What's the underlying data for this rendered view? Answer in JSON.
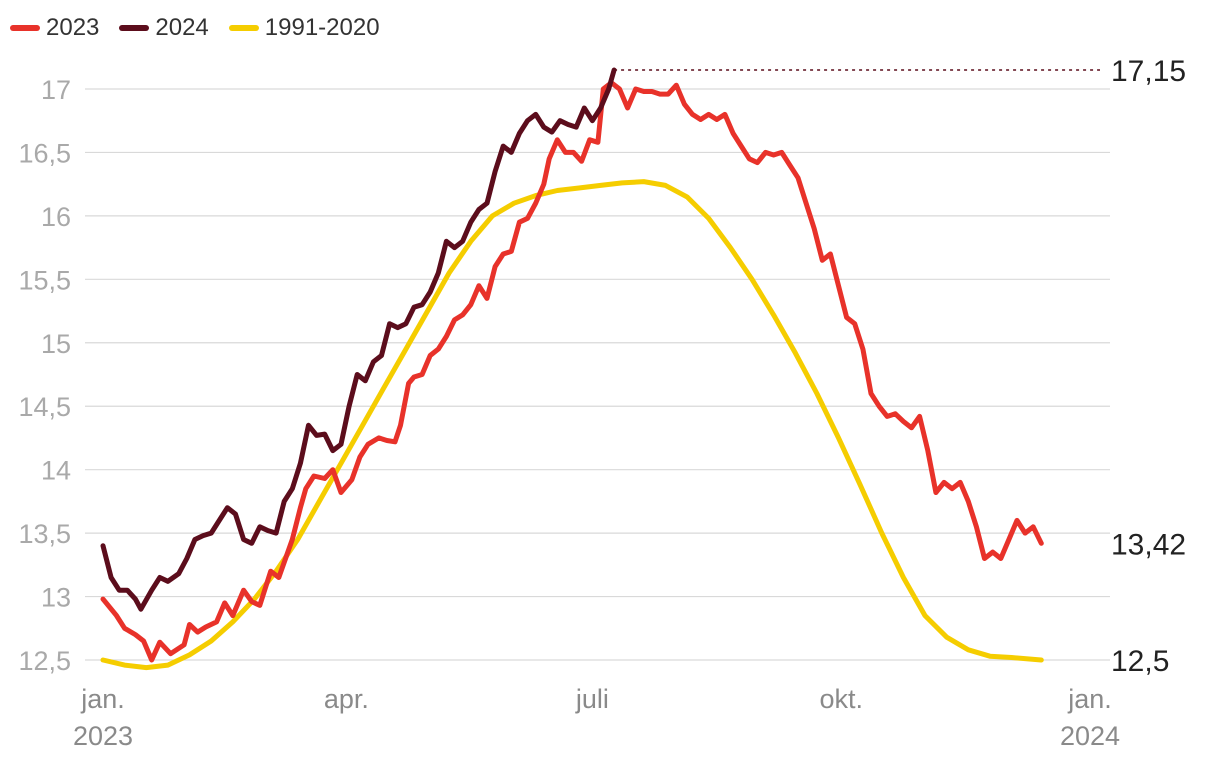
{
  "chart_data": {
    "type": "line",
    "title": "",
    "xlabel": "",
    "ylabel": "",
    "ylim": [
      12.5,
      17.15
    ],
    "yticks": [
      "12,5",
      "13",
      "13,5",
      "14",
      "14,5",
      "15",
      "15,5",
      "16",
      "16,5",
      "17"
    ],
    "ytick_values": [
      12.5,
      13,
      13.5,
      14,
      14.5,
      15,
      15.5,
      16,
      16.5,
      17
    ],
    "xticks": [
      {
        "day": 0,
        "label": "jan.",
        "sublabel": "2023"
      },
      {
        "day": 90,
        "label": "apr.",
        "sublabel": ""
      },
      {
        "day": 181,
        "label": "juli",
        "sublabel": ""
      },
      {
        "day": 273,
        "label": "okt.",
        "sublabel": ""
      },
      {
        "day": 365,
        "label": "jan.",
        "sublabel": "2024"
      }
    ],
    "x_unit": "day of year",
    "series": [
      {
        "name": "2023",
        "color": "#e8322a",
        "points": [
          [
            0,
            12.98
          ],
          [
            5,
            12.85
          ],
          [
            8,
            12.75
          ],
          [
            12,
            12.7
          ],
          [
            15,
            12.65
          ],
          [
            18,
            12.5
          ],
          [
            21,
            12.64
          ],
          [
            25,
            12.55
          ],
          [
            30,
            12.62
          ],
          [
            32,
            12.78
          ],
          [
            35,
            12.72
          ],
          [
            38,
            12.76
          ],
          [
            42,
            12.8
          ],
          [
            45,
            12.95
          ],
          [
            48,
            12.85
          ],
          [
            52,
            13.05
          ],
          [
            55,
            12.96
          ],
          [
            58,
            12.93
          ],
          [
            62,
            13.2
          ],
          [
            65,
            13.15
          ],
          [
            70,
            13.45
          ],
          [
            73,
            13.7
          ],
          [
            75,
            13.85
          ],
          [
            78,
            13.95
          ],
          [
            82,
            13.93
          ],
          [
            85,
            14.0
          ],
          [
            88,
            13.82
          ],
          [
            92,
            13.92
          ],
          [
            95,
            14.1
          ],
          [
            98,
            14.2
          ],
          [
            102,
            14.25
          ],
          [
            105,
            14.23
          ],
          [
            108,
            14.22
          ],
          [
            110,
            14.35
          ],
          [
            113,
            14.68
          ],
          [
            115,
            14.73
          ],
          [
            118,
            14.75
          ],
          [
            121,
            14.9
          ],
          [
            124,
            14.95
          ],
          [
            127,
            15.05
          ],
          [
            130,
            15.18
          ],
          [
            133,
            15.22
          ],
          [
            136,
            15.3
          ],
          [
            139,
            15.45
          ],
          [
            142,
            15.35
          ],
          [
            145,
            15.6
          ],
          [
            148,
            15.7
          ],
          [
            151,
            15.72
          ],
          [
            154,
            15.95
          ],
          [
            157,
            15.98
          ],
          [
            160,
            16.1
          ],
          [
            163,
            16.25
          ],
          [
            165,
            16.45
          ],
          [
            168,
            16.6
          ],
          [
            171,
            16.5
          ],
          [
            174,
            16.5
          ],
          [
            177,
            16.43
          ],
          [
            180,
            16.6
          ],
          [
            183,
            16.58
          ],
          [
            185,
            17.0
          ],
          [
            188,
            17.05
          ],
          [
            191,
            17.0
          ],
          [
            194,
            16.85
          ],
          [
            197,
            17.0
          ],
          [
            200,
            16.98
          ],
          [
            203,
            16.98
          ],
          [
            206,
            16.96
          ],
          [
            209,
            16.96
          ],
          [
            212,
            17.03
          ],
          [
            215,
            16.88
          ],
          [
            218,
            16.8
          ],
          [
            221,
            16.76
          ],
          [
            224,
            16.8
          ],
          [
            227,
            16.76
          ],
          [
            230,
            16.8
          ],
          [
            233,
            16.65
          ],
          [
            236,
            16.55
          ],
          [
            239,
            16.45
          ],
          [
            242,
            16.42
          ],
          [
            245,
            16.5
          ],
          [
            248,
            16.48
          ],
          [
            251,
            16.5
          ],
          [
            254,
            16.4
          ],
          [
            257,
            16.3
          ],
          [
            260,
            16.1
          ],
          [
            263,
            15.9
          ],
          [
            266,
            15.65
          ],
          [
            269,
            15.7
          ],
          [
            272,
            15.45
          ],
          [
            275,
            15.2
          ],
          [
            278,
            15.15
          ],
          [
            281,
            14.95
          ],
          [
            284,
            14.6
          ],
          [
            287,
            14.5
          ],
          [
            290,
            14.42
          ],
          [
            293,
            14.44
          ],
          [
            296,
            14.38
          ],
          [
            299,
            14.33
          ],
          [
            302,
            14.42
          ],
          [
            305,
            14.15
          ],
          [
            308,
            13.82
          ],
          [
            311,
            13.9
          ],
          [
            314,
            13.85
          ],
          [
            317,
            13.9
          ],
          [
            320,
            13.75
          ],
          [
            323,
            13.55
          ],
          [
            326,
            13.3
          ],
          [
            329,
            13.35
          ],
          [
            332,
            13.3
          ],
          [
            335,
            13.45
          ],
          [
            338,
            13.6
          ],
          [
            341,
            13.5
          ],
          [
            344,
            13.55
          ],
          [
            347,
            13.42
          ]
        ]
      },
      {
        "name": "2024",
        "color": "#5c0d1c",
        "points": [
          [
            0,
            13.4
          ],
          [
            3,
            13.15
          ],
          [
            6,
            13.05
          ],
          [
            9,
            13.05
          ],
          [
            12,
            12.98
          ],
          [
            14,
            12.9
          ],
          [
            18,
            13.05
          ],
          [
            21,
            13.15
          ],
          [
            24,
            13.12
          ],
          [
            28,
            13.18
          ],
          [
            31,
            13.3
          ],
          [
            34,
            13.45
          ],
          [
            37,
            13.48
          ],
          [
            40,
            13.5
          ],
          [
            43,
            13.6
          ],
          [
            46,
            13.7
          ],
          [
            49,
            13.65
          ],
          [
            52,
            13.45
          ],
          [
            55,
            13.42
          ],
          [
            58,
            13.55
          ],
          [
            61,
            13.52
          ],
          [
            64,
            13.5
          ],
          [
            67,
            13.75
          ],
          [
            70,
            13.85
          ],
          [
            73,
            14.05
          ],
          [
            76,
            14.35
          ],
          [
            79,
            14.27
          ],
          [
            82,
            14.28
          ],
          [
            85,
            14.15
          ],
          [
            88,
            14.2
          ],
          [
            91,
            14.5
          ],
          [
            94,
            14.75
          ],
          [
            97,
            14.7
          ],
          [
            100,
            14.85
          ],
          [
            103,
            14.9
          ],
          [
            106,
            15.15
          ],
          [
            109,
            15.12
          ],
          [
            112,
            15.15
          ],
          [
            115,
            15.28
          ],
          [
            118,
            15.3
          ],
          [
            121,
            15.4
          ],
          [
            124,
            15.55
          ],
          [
            127,
            15.8
          ],
          [
            130,
            15.75
          ],
          [
            133,
            15.8
          ],
          [
            136,
            15.95
          ],
          [
            139,
            16.05
          ],
          [
            142,
            16.1
          ],
          [
            145,
            16.35
          ],
          [
            148,
            16.55
          ],
          [
            151,
            16.5
          ],
          [
            154,
            16.65
          ],
          [
            157,
            16.75
          ],
          [
            160,
            16.8
          ],
          [
            163,
            16.7
          ],
          [
            166,
            16.66
          ],
          [
            169,
            16.75
          ],
          [
            172,
            16.72
          ],
          [
            175,
            16.7
          ],
          [
            178,
            16.85
          ],
          [
            181,
            16.75
          ],
          [
            184,
            16.85
          ],
          [
            187,
            17.0
          ],
          [
            189,
            17.15
          ]
        ]
      },
      {
        "name": "1991-2020",
        "color": "#f5cd00",
        "points": [
          [
            0,
            12.5
          ],
          [
            8,
            12.46
          ],
          [
            16,
            12.44
          ],
          [
            24,
            12.46
          ],
          [
            32,
            12.54
          ],
          [
            40,
            12.65
          ],
          [
            48,
            12.8
          ],
          [
            56,
            12.98
          ],
          [
            64,
            13.2
          ],
          [
            72,
            13.45
          ],
          [
            80,
            13.75
          ],
          [
            88,
            14.05
          ],
          [
            96,
            14.35
          ],
          [
            104,
            14.65
          ],
          [
            112,
            14.95
          ],
          [
            120,
            15.25
          ],
          [
            128,
            15.55
          ],
          [
            136,
            15.8
          ],
          [
            144,
            16.0
          ],
          [
            152,
            16.1
          ],
          [
            160,
            16.16
          ],
          [
            168,
            16.2
          ],
          [
            176,
            16.22
          ],
          [
            184,
            16.24
          ],
          [
            192,
            16.26
          ],
          [
            200,
            16.27
          ],
          [
            208,
            16.24
          ],
          [
            216,
            16.15
          ],
          [
            224,
            15.98
          ],
          [
            232,
            15.75
          ],
          [
            240,
            15.5
          ],
          [
            248,
            15.22
          ],
          [
            256,
            14.92
          ],
          [
            264,
            14.6
          ],
          [
            272,
            14.25
          ],
          [
            280,
            13.88
          ],
          [
            288,
            13.5
          ],
          [
            296,
            13.15
          ],
          [
            304,
            12.85
          ],
          [
            312,
            12.68
          ],
          [
            320,
            12.58
          ],
          [
            328,
            12.53
          ],
          [
            336,
            12.52
          ],
          [
            347,
            12.5
          ]
        ]
      }
    ],
    "end_labels": [
      {
        "series": "2024",
        "value": 17.15,
        "label": "17,15"
      },
      {
        "series": "2023",
        "value": 13.42,
        "label": "13,42"
      },
      {
        "series": "1991-2020",
        "value": 12.5,
        "label": "12,5"
      }
    ],
    "grid": true,
    "legend": "top-left"
  }
}
